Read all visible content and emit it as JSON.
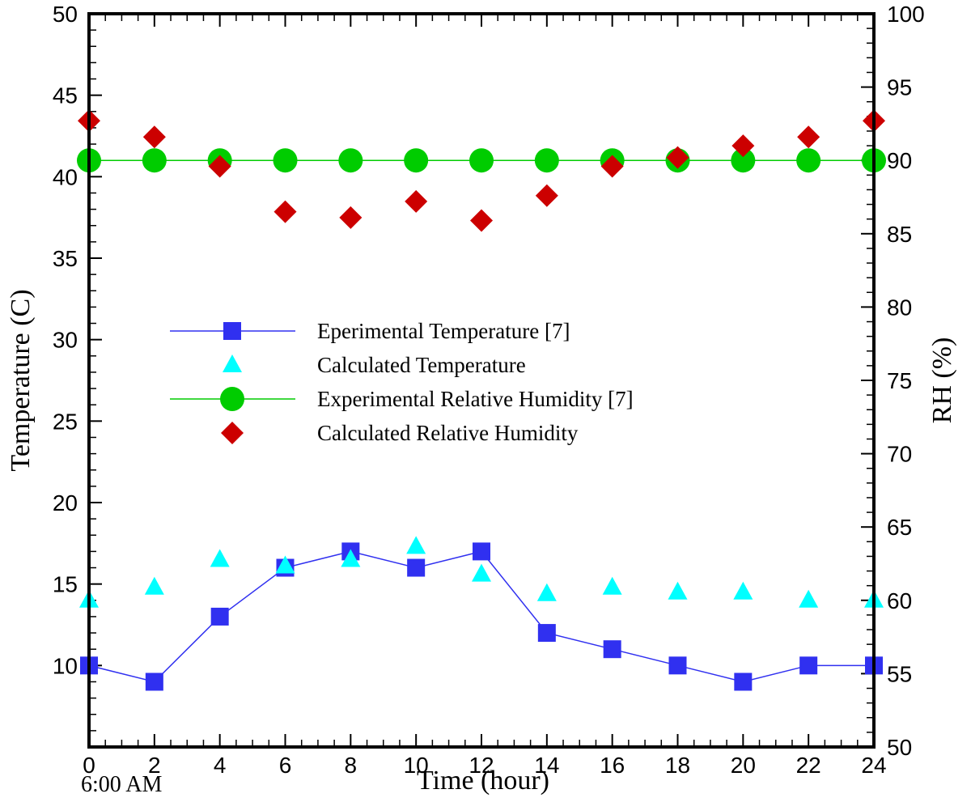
{
  "chart_data": {
    "type": "scatter",
    "xlabel": "Time (hour)",
    "ylabel_left": "Temperature (C)",
    "ylabel_right": "RH (%)",
    "xlim": [
      0,
      24
    ],
    "ylim_left": [
      5,
      50
    ],
    "ylim_right": [
      50,
      100
    ],
    "x_ticks": [
      0,
      2,
      4,
      6,
      8,
      10,
      12,
      14,
      16,
      18,
      20,
      22,
      24
    ],
    "y_ticks_left": [
      10,
      15,
      20,
      25,
      30,
      35,
      40,
      45,
      50
    ],
    "y_ticks_right": [
      50,
      55,
      60,
      65,
      70,
      75,
      80,
      85,
      90,
      95,
      100
    ],
    "grid": false,
    "legend_position": "center-left",
    "annotations": [
      {
        "text": "6:00 AM",
        "x": 0
      }
    ],
    "series": [
      {
        "name": "Eperimental Temperature [7]",
        "axis": "left",
        "marker": "square",
        "line": true,
        "color": "#3030f0",
        "x": [
          0,
          2,
          4,
          6,
          8,
          10,
          12,
          14,
          16,
          18,
          20,
          22,
          24
        ],
        "y": [
          10,
          9,
          13,
          16,
          17,
          16,
          17,
          12,
          11,
          10,
          9,
          10,
          10
        ]
      },
      {
        "name": "Calculated Temperature",
        "axis": "left",
        "marker": "triangle",
        "line": false,
        "color": "#00ffff",
        "x": [
          0,
          2,
          4,
          6,
          8,
          10,
          12,
          14,
          16,
          18,
          20,
          22,
          24
        ],
        "y": [
          14.0,
          14.8,
          16.5,
          16.1,
          16.5,
          17.3,
          15.6,
          14.4,
          14.8,
          14.5,
          14.5,
          14.0,
          14.0
        ]
      },
      {
        "name": " Experimental Relative Humidity [7]",
        "axis": "right",
        "marker": "circle",
        "line": true,
        "color": "#00cc00",
        "x": [
          0,
          2,
          4,
          6,
          8,
          10,
          12,
          14,
          16,
          18,
          20,
          22,
          24
        ],
        "y": [
          90,
          90,
          90,
          90,
          90,
          90,
          90,
          90,
          90,
          90,
          90,
          90,
          90
        ]
      },
      {
        "name": "Calculated Relative Humidity",
        "axis": "right",
        "marker": "diamond",
        "line": false,
        "color": "#cc0000",
        "x": [
          0,
          2,
          4,
          6,
          8,
          10,
          12,
          14,
          16,
          18,
          20,
          22,
          24
        ],
        "y": [
          92.7,
          91.6,
          89.6,
          86.5,
          86.1,
          87.2,
          85.9,
          87.6,
          89.6,
          90.2,
          91.0,
          91.6,
          92.7
        ]
      }
    ]
  }
}
